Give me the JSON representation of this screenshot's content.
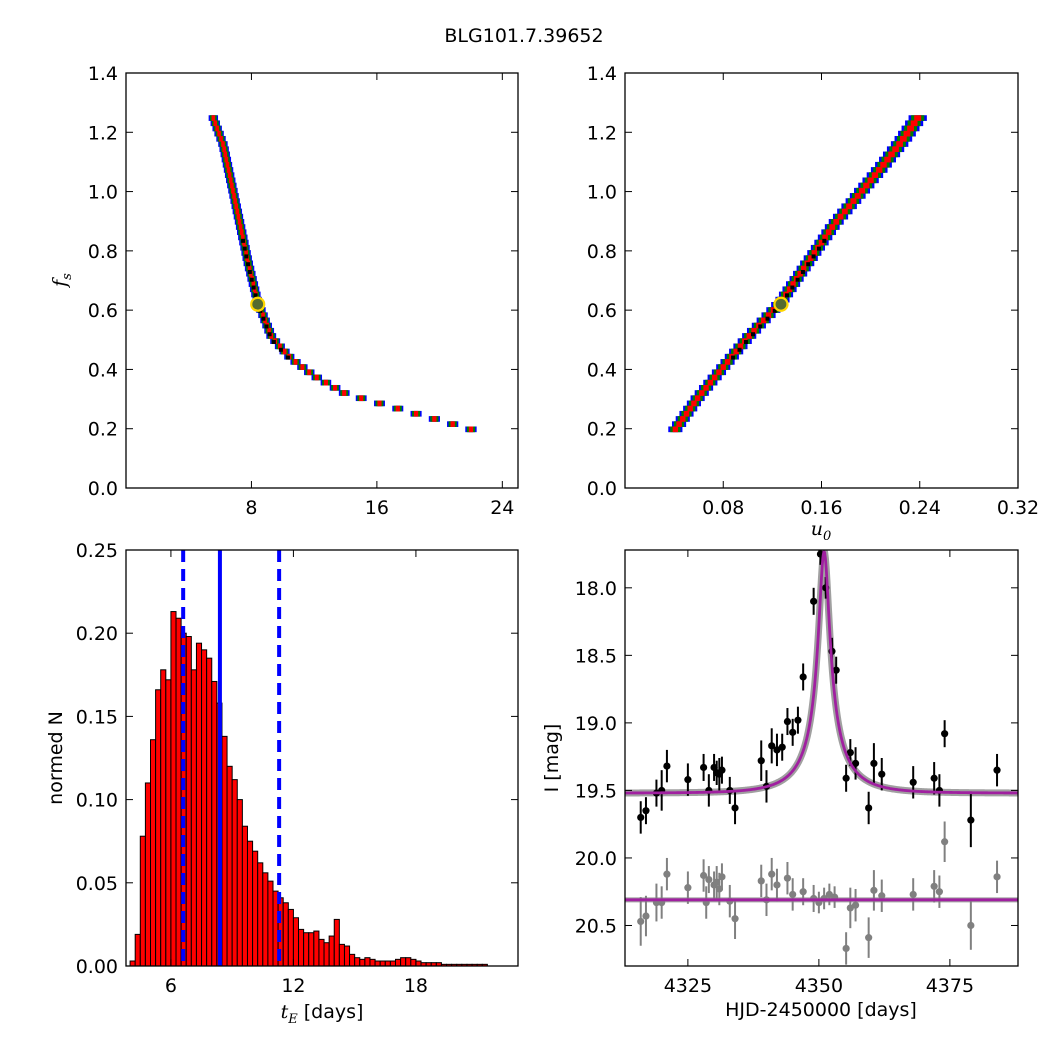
{
  "figure_title": "BLG101.7.39652",
  "colors": {
    "sigma3": "#0000ff",
    "sigma2": "#008000",
    "sigma1": "#ff0000",
    "best": "#000000",
    "marker_fill": "#556b2f",
    "marker_edge": "#ffd700",
    "hist_bar": "#ff0000",
    "vline": "#0000ff",
    "model": "#a020a0",
    "data_main": "#000000",
    "data_second": "#808080"
  },
  "chart_data": [
    {
      "id": "fs_vs_tE",
      "type": "heatmap",
      "xlabel": "",
      "ylabel": "f_s",
      "xlim": [
        0,
        25
      ],
      "ylim": [
        0,
        1.4
      ],
      "xticks": [
        8,
        16,
        24
      ],
      "yticks": [
        0.0,
        0.2,
        0.4,
        0.6,
        0.8,
        1.0,
        1.2,
        1.4
      ],
      "best_fit": {
        "x": 8.4,
        "y": 0.62
      },
      "confidence_band": {
        "x": [
          5.5,
          6.2,
          6.8,
          7.2,
          7.8,
          8.4,
          9.3,
          10.5,
          12.0,
          14.0,
          16.0,
          18.0,
          20.0,
          22.0,
          23.0
        ],
        "y": [
          1.25,
          1.15,
          1.0,
          0.9,
          0.75,
          0.62,
          0.5,
          0.43,
          0.37,
          0.31,
          0.28,
          0.25,
          0.22,
          0.19,
          0.19
        ]
      }
    },
    {
      "id": "fs_vs_u0",
      "type": "heatmap",
      "xlabel": "u_0",
      "ylabel": "",
      "xlim": [
        0,
        0.32
      ],
      "ylim": [
        0,
        1.4
      ],
      "xticks": [
        0.08,
        0.16,
        0.24,
        0.32
      ],
      "yticks": [
        0.0,
        0.2,
        0.4,
        0.6,
        0.8,
        1.0,
        1.2,
        1.4
      ],
      "best_fit": {
        "x": 0.127,
        "y": 0.62
      },
      "confidence_band": {
        "x": [
          0.041,
          0.06,
          0.08,
          0.1,
          0.127,
          0.15,
          0.17,
          0.19,
          0.21,
          0.225,
          0.24
        ],
        "y": [
          0.19,
          0.3,
          0.4,
          0.5,
          0.62,
          0.76,
          0.88,
          0.98,
          1.08,
          1.16,
          1.25
        ]
      }
    },
    {
      "id": "tE_histogram",
      "type": "bar",
      "xlabel": "t_E [days]",
      "ylabel": "normed N",
      "xlim": [
        3.8,
        23.0
      ],
      "ylim": [
        0,
        0.25
      ],
      "xticks": [
        6,
        12,
        18
      ],
      "yticks": [
        0.0,
        0.05,
        0.1,
        0.15,
        0.2,
        0.25
      ],
      "bin_start": 4.0,
      "bin_width": 0.25,
      "values": [
        0.003,
        0.019,
        0.078,
        0.11,
        0.136,
        0.166,
        0.178,
        0.172,
        0.213,
        0.209,
        0.2,
        0.198,
        0.178,
        0.194,
        0.19,
        0.185,
        0.171,
        0.158,
        0.138,
        0.12,
        0.112,
        0.1,
        0.084,
        0.075,
        0.069,
        0.062,
        0.056,
        0.051,
        0.045,
        0.041,
        0.038,
        0.034,
        0.029,
        0.022,
        0.02,
        0.02,
        0.021,
        0.016,
        0.014,
        0.018,
        0.028,
        0.013,
        0.012,
        0.007,
        0.005,
        0.004,
        0.005,
        0.004,
        0.003,
        0.003,
        0.003,
        0.003,
        0.004,
        0.005,
        0.005,
        0.004,
        0.003,
        0.002,
        0.002,
        0.002,
        0.002,
        0.001,
        0.001,
        0.001,
        0.001,
        0.001,
        0.001,
        0.001,
        0.001,
        0.001
      ],
      "vlines": [
        {
          "x": 6.6,
          "style": "dashed"
        },
        {
          "x": 8.4,
          "style": "solid"
        },
        {
          "x": 11.3,
          "style": "dashed"
        }
      ]
    },
    {
      "id": "lightcurve",
      "type": "scatter",
      "xlabel": "HJD-2450000 [days]",
      "ylabel": "I [mag]",
      "xlim": [
        4313,
        4388
      ],
      "ylim": [
        20.8,
        17.72
      ],
      "xticks": [
        4325,
        4350,
        4375
      ],
      "yticks": [
        18.0,
        18.5,
        19.0,
        19.5,
        20.0,
        20.5
      ],
      "model": {
        "t0": 4351.0,
        "u0": 0.127,
        "tE": 8.4,
        "baseline": 19.52,
        "peak": 17.73,
        "second_baseline": 20.31
      },
      "series": [
        {
          "points": [
            [
              4316,
              19.7,
              0.12
            ],
            [
              4317,
              19.65,
              0.1
            ],
            [
              4319,
              19.52,
              0.1
            ],
            [
              4320,
              19.5,
              0.15
            ],
            [
              4321,
              19.32,
              0.12
            ],
            [
              4325,
              19.42,
              0.12
            ],
            [
              4328,
              19.33,
              0.1
            ],
            [
              4329,
              19.5,
              0.12
            ],
            [
              4330,
              19.33,
              0.1
            ],
            [
              4330.5,
              19.37,
              0.09
            ],
            [
              4331,
              19.38,
              0.12
            ],
            [
              4331.5,
              19.35,
              0.1
            ],
            [
              4333,
              19.5,
              0.1
            ],
            [
              4334,
              19.63,
              0.12
            ],
            [
              4339,
              19.28,
              0.15
            ],
            [
              4340,
              19.47,
              0.12
            ],
            [
              4341,
              19.17,
              0.13
            ],
            [
              4342,
              19.2,
              0.12
            ],
            [
              4343,
              19.18,
              0.1
            ],
            [
              4344,
              18.99,
              0.1
            ],
            [
              4345,
              19.07,
              0.1
            ],
            [
              4346,
              18.98,
              0.1
            ],
            [
              4347,
              18.66,
              0.1
            ],
            [
              4349,
              18.1,
              0.1
            ],
            [
              4350.3,
              17.75,
              0.08
            ],
            [
              4351.3,
              18.0,
              0.08
            ],
            [
              4352.5,
              18.47,
              0.1
            ],
            [
              4353.3,
              18.61,
              0.1
            ],
            [
              4355.2,
              19.41,
              0.1
            ],
            [
              4356,
              19.22,
              0.1
            ],
            [
              4357,
              19.3,
              0.12
            ],
            [
              4359.5,
              19.63,
              0.12
            ],
            [
              4360.5,
              19.3,
              0.15
            ],
            [
              4362,
              19.38,
              0.12
            ],
            [
              4368,
              19.44,
              0.12
            ],
            [
              4372,
              19.41,
              0.12
            ],
            [
              4373,
              19.5,
              0.12
            ],
            [
              4374,
              19.08,
              0.1
            ],
            [
              4379,
              19.72,
              0.2
            ],
            [
              4384,
              19.35,
              0.12
            ]
          ]
        },
        {
          "points": [
            [
              4316,
              20.47,
              0.18
            ],
            [
              4317,
              20.43,
              0.15
            ],
            [
              4319,
              20.33,
              0.14
            ],
            [
              4320,
              20.33,
              0.12
            ],
            [
              4321,
              20.12,
              0.12
            ],
            [
              4325,
              20.22,
              0.12
            ],
            [
              4328,
              20.13,
              0.12
            ],
            [
              4328.5,
              20.33,
              0.12
            ],
            [
              4329,
              20.16,
              0.1
            ],
            [
              4330,
              20.2,
              0.1
            ],
            [
              4330.5,
              20.18,
              0.12
            ],
            [
              4331,
              20.23,
              0.12
            ],
            [
              4331.5,
              20.14,
              0.1
            ],
            [
              4333,
              20.32,
              0.12
            ],
            [
              4334,
              20.45,
              0.15
            ],
            [
              4339,
              20.17,
              0.12
            ],
            [
              4340,
              20.31,
              0.12
            ],
            [
              4341,
              20.12,
              0.12
            ],
            [
              4342,
              20.2,
              0.12
            ],
            [
              4344,
              20.15,
              0.12
            ],
            [
              4345,
              20.27,
              0.12
            ],
            [
              4347,
              20.25,
              0.1
            ],
            [
              4349,
              20.3,
              0.1
            ],
            [
              4350,
              20.33,
              0.08
            ],
            [
              4351,
              20.3,
              0.08
            ],
            [
              4352,
              20.27,
              0.08
            ],
            [
              4353,
              20.29,
              0.08
            ],
            [
              4355.2,
              20.67,
              0.12
            ],
            [
              4356,
              20.37,
              0.15
            ],
            [
              4357,
              20.35,
              0.12
            ],
            [
              4359.5,
              20.59,
              0.15
            ],
            [
              4360.5,
              20.24,
              0.15
            ],
            [
              4362,
              20.28,
              0.12
            ],
            [
              4368,
              20.27,
              0.12
            ],
            [
              4372,
              20.21,
              0.12
            ],
            [
              4373,
              20.25,
              0.12
            ],
            [
              4374,
              19.88,
              0.15
            ],
            [
              4379,
              20.5,
              0.18
            ],
            [
              4384,
              20.14,
              0.12
            ]
          ]
        }
      ]
    }
  ]
}
